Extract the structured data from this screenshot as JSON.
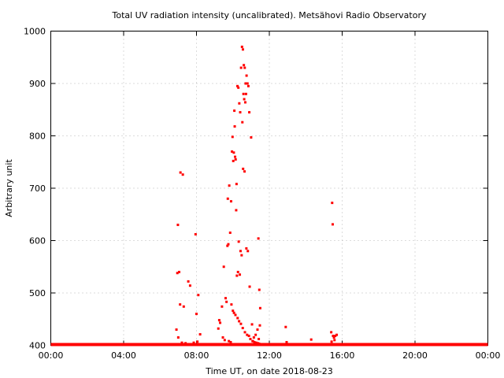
{
  "chart_data": {
    "type": "scatter",
    "title": "Total UV radiation intensity (uncalibrated). Metsähovi Radio Observatory",
    "xlabel": "Time UT, on date 2018-08-23",
    "ylabel": "Arbitrary unit",
    "xlim": [
      0,
      24
    ],
    "ylim": [
      400,
      1000
    ],
    "x_ticks": [
      "00:00",
      "04:00",
      "08:00",
      "12:00",
      "16:00",
      "20:00",
      "00:00"
    ],
    "y_ticks": [
      "400",
      "500",
      "600",
      "700",
      "800",
      "900",
      "1000"
    ],
    "grid": true,
    "legend": "none",
    "marker_color": "#ff0000",
    "baseline": {
      "x_start": 0,
      "x_end": 24,
      "y": 400
    },
    "series": [
      {
        "x": [
          6.95,
          7.05,
          7.12,
          7.25,
          6.98,
          7.1,
          7.3,
          7.55,
          7.95,
          7.65,
          8.1,
          7.2,
          7.4,
          8.05,
          8.2,
          7.0,
          7.15,
          6.9,
          8.0,
          7.85,
          9.5,
          9.7,
          9.75,
          9.85,
          9.8,
          9.72,
          9.9,
          9.95,
          10.05,
          10.15,
          10.2,
          10.1,
          10.08,
          10.25,
          10.3,
          10.35,
          10.4,
          10.45,
          10.5,
          10.55,
          10.6,
          10.65,
          10.7,
          10.75,
          10.8,
          10.85,
          10.9,
          10.52,
          10.58,
          10.62,
          10.68,
          10.72,
          10.42,
          10.38,
          10.28,
          10.22,
          10.12,
          10.02,
          9.98,
          10.18,
          10.32,
          10.48,
          10.56,
          10.64,
          10.74,
          10.82,
          10.92,
          11.0,
          11.05,
          11.15,
          11.25,
          11.4,
          11.45,
          11.5,
          11.35,
          11.42,
          11.48,
          11.3,
          11.2,
          11.1,
          9.6,
          9.65,
          9.4,
          9.3,
          9.25,
          9.2,
          9.45,
          9.55,
          9.78,
          9.88,
          9.92,
          10.0,
          10.06,
          10.14,
          10.26,
          10.34,
          10.44,
          10.54,
          10.66,
          10.78,
          10.88,
          10.96,
          11.08,
          11.18,
          11.28,
          11.38,
          11.44,
          11.52,
          12.9,
          12.95,
          14.3,
          15.45,
          15.48,
          15.4,
          15.5,
          15.55,
          15.7,
          15.62,
          15.42,
          15.58
        ],
        "y": [
          538,
          540,
          730,
          726,
          630,
          478,
          474,
          522,
          612,
          514,
          496,
          405,
          404,
          407,
          421,
          415,
          402,
          430,
          460,
          405,
          550,
          590,
          593,
          615,
          705,
          680,
          675,
          770,
          768,
          755,
          708,
          818,
          848,
          895,
          892,
          862,
          845,
          930,
          970,
          965,
          935,
          930,
          900,
          915,
          900,
          895,
          845,
          826,
          880,
          870,
          864,
          880,
          580,
          535,
          540,
          533,
          760,
          752,
          798,
          658,
          598,
          572,
          737,
          732,
          585,
          580,
          512,
          797,
          440,
          415,
          420,
          604,
          506,
          471,
          430,
          412,
          438,
          403,
          404,
          408,
          490,
          483,
          474,
          443,
          448,
          432,
          415,
          410,
          408,
          406,
          478,
          466,
          462,
          458,
          452,
          446,
          441,
          433,
          425,
          420,
          418,
          412,
          408,
          406,
          405,
          404,
          403,
          402,
          435,
          406,
          411,
          672,
          631,
          425,
          418,
          415,
          420,
          418,
          407,
          410
        ]
      }
    ]
  }
}
